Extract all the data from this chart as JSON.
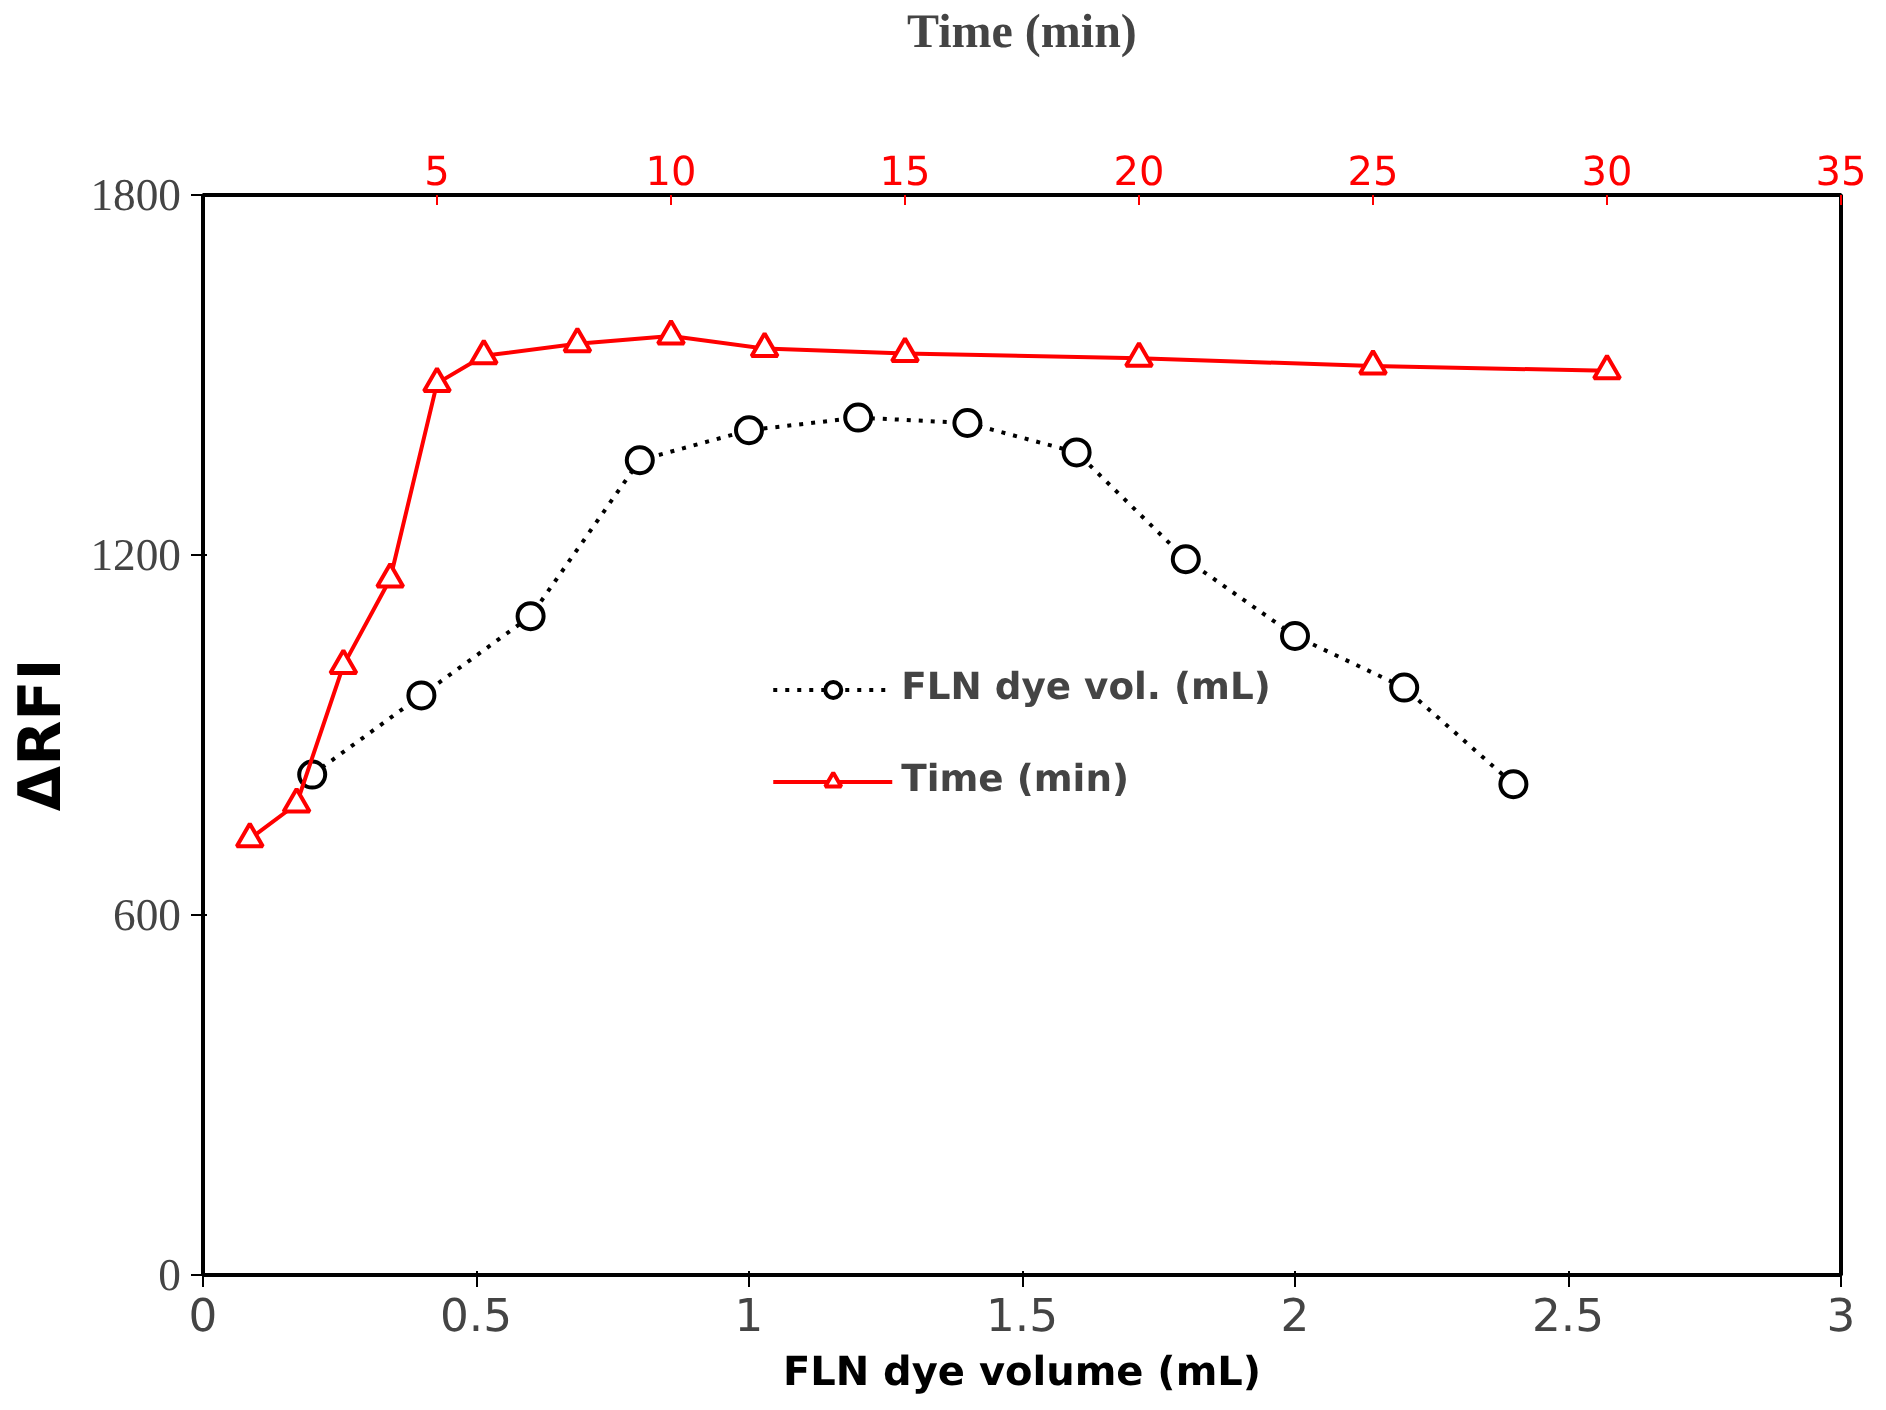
{
  "chart_data": {
    "type": "line",
    "xlabel": "FLN dye volume (mL)",
    "ylabel": "ΔRFI",
    "x2label": "Time (min)",
    "xlim": [
      0,
      3
    ],
    "xticks": [
      0,
      0.5,
      1,
      1.5,
      2,
      2.5,
      3
    ],
    "x2lim": [
      0,
      35
    ],
    "x2ticks": [
      5,
      10,
      15,
      20,
      25,
      30,
      35
    ],
    "ylim": [
      0,
      1800
    ],
    "yticks": [
      0,
      600,
      1200,
      1800
    ],
    "grid": false,
    "legend": "center",
    "series": [
      {
        "name": "FLN dye vol. (mL)",
        "color": "#000000",
        "marker": "circle",
        "line_style": "dotted",
        "x": [
          0.2,
          0.4,
          0.6,
          0.8,
          1.0,
          1.2,
          1.4,
          1.6,
          1.8,
          2.0,
          2.2,
          2.4
        ],
        "values": [
          834,
          966,
          1098,
          1358,
          1408,
          1429,
          1420,
          1371,
          1193,
          1065,
          979,
          818
        ]
      },
      {
        "name": "Time (min)",
        "color": "#ff0000",
        "marker": "triangle",
        "line_style": "solid",
        "axis": "x2",
        "x": [
          1,
          2,
          3,
          4,
          5,
          6,
          8,
          10,
          12,
          15,
          20,
          25,
          30
        ],
        "values": [
          727,
          785,
          1016,
          1160,
          1486,
          1532,
          1552,
          1565,
          1544,
          1536,
          1528,
          1515,
          1507
        ]
      }
    ]
  }
}
